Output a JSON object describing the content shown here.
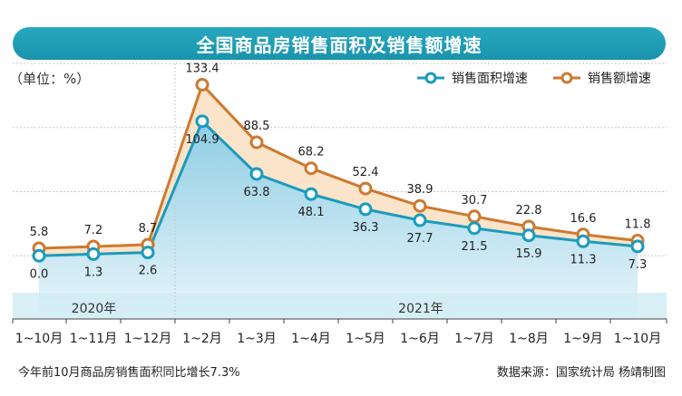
{
  "header": {
    "title": "全国商品房销售面积及销售额增速",
    "unit_label": "（单位：%）"
  },
  "footer": {
    "note": "今年前10月商品房销售面积同比增长7.3%",
    "source": "数据来源：国家统计局  杨靖制图"
  },
  "colors": {
    "area_line": "#1b9bbd",
    "amount_line": "#cc7a30",
    "title_bg": "#1fa0b8",
    "band": "#d2ecf5"
  },
  "chart_data": {
    "type": "line",
    "categories": [
      "1~10月",
      "1~11月",
      "1~12月",
      "1~2月",
      "1~3月",
      "1~4月",
      "1~5月",
      "1~6月",
      "1~7月",
      "1~8月",
      "1~9月",
      "1~10月"
    ],
    "year_groups": [
      {
        "label": "2020年",
        "start": 0,
        "end": 2
      },
      {
        "label": "2021年",
        "start": 3,
        "end": 11
      }
    ],
    "series": [
      {
        "name": "销售面积增速",
        "values": [
          0.0,
          1.3,
          2.6,
          104.9,
          63.8,
          48.1,
          36.3,
          27.7,
          21.5,
          15.9,
          11.3,
          7.3
        ],
        "labels": [
          "0.0",
          "1.3",
          "2.6",
          "104.9",
          "63.8",
          "48.1",
          "36.3",
          "27.7",
          "21.5",
          "15.9",
          "11.3",
          "7.3"
        ]
      },
      {
        "name": "销售额增速",
        "values": [
          5.8,
          7.2,
          8.7,
          133.4,
          88.5,
          68.2,
          52.4,
          38.9,
          30.7,
          22.8,
          16.6,
          11.8
        ],
        "labels": [
          "5.8",
          "7.2",
          "8.7",
          "133.4",
          "88.5",
          "68.2",
          "52.4",
          "38.9",
          "30.7",
          "22.8",
          "16.6",
          "11.8"
        ]
      }
    ],
    "ylim": [
      -50,
      150
    ],
    "grid": true,
    "legend_position": "top-right"
  }
}
